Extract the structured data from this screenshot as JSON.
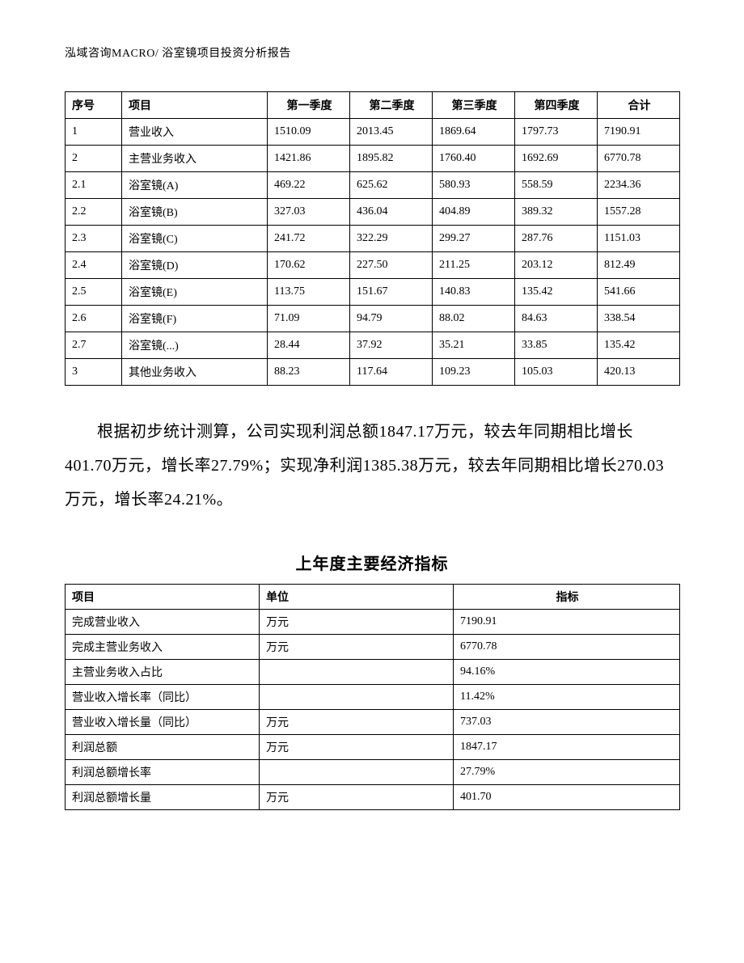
{
  "header": "泓域咨询MACRO/   浴室镜项目投资分析报告",
  "table1": {
    "columns": [
      "序号",
      "项目",
      "第一季度",
      "第二季度",
      "第三季度",
      "第四季度",
      "合计"
    ],
    "rows": [
      [
        "1",
        "营业收入",
        "1510.09",
        "2013.45",
        "1869.64",
        "1797.73",
        "7190.91"
      ],
      [
        "2",
        "主营业务收入",
        "1421.86",
        "1895.82",
        "1760.40",
        "1692.69",
        "6770.78"
      ],
      [
        "2.1",
        "浴室镜(A)",
        "469.22",
        "625.62",
        "580.93",
        "558.59",
        "2234.36"
      ],
      [
        "2.2",
        "浴室镜(B)",
        "327.03",
        "436.04",
        "404.89",
        "389.32",
        "1557.28"
      ],
      [
        "2.3",
        "浴室镜(C)",
        "241.72",
        "322.29",
        "299.27",
        "287.76",
        "1151.03"
      ],
      [
        "2.4",
        "浴室镜(D)",
        "170.62",
        "227.50",
        "211.25",
        "203.12",
        "812.49"
      ],
      [
        "2.5",
        "浴室镜(E)",
        "113.75",
        "151.67",
        "140.83",
        "135.42",
        "541.66"
      ],
      [
        "2.6",
        "浴室镜(F)",
        "71.09",
        "94.79",
        "88.02",
        "84.63",
        "338.54"
      ],
      [
        "2.7",
        "浴室镜(...)",
        "28.44",
        "37.92",
        "35.21",
        "33.85",
        "135.42"
      ],
      [
        "3",
        "其他业务收入",
        "88.23",
        "117.64",
        "109.23",
        "105.03",
        "420.13"
      ]
    ]
  },
  "paragraph": "根据初步统计测算，公司实现利润总额1847.17万元，较去年同期相比增长401.70万元，增长率27.79%；实现净利润1385.38万元，较去年同期相比增长270.03万元，增长率24.21%。",
  "subtitle": "上年度主要经济指标",
  "table2": {
    "columns": [
      "项目",
      "单位",
      "指标"
    ],
    "rows": [
      [
        "完成营业收入",
        "万元",
        "7190.91"
      ],
      [
        "完成主营业务收入",
        "万元",
        "6770.78"
      ],
      [
        "主营业务收入占比",
        "",
        "94.16%"
      ],
      [
        "营业收入增长率（同比）",
        "",
        "11.42%"
      ],
      [
        "营业收入增长量（同比）",
        "万元",
        "737.03"
      ],
      [
        "利润总额",
        "万元",
        "1847.17"
      ],
      [
        "利润总额增长率",
        "",
        "27.79%"
      ],
      [
        "利润总额增长量",
        "万元",
        "401.70"
      ]
    ]
  }
}
